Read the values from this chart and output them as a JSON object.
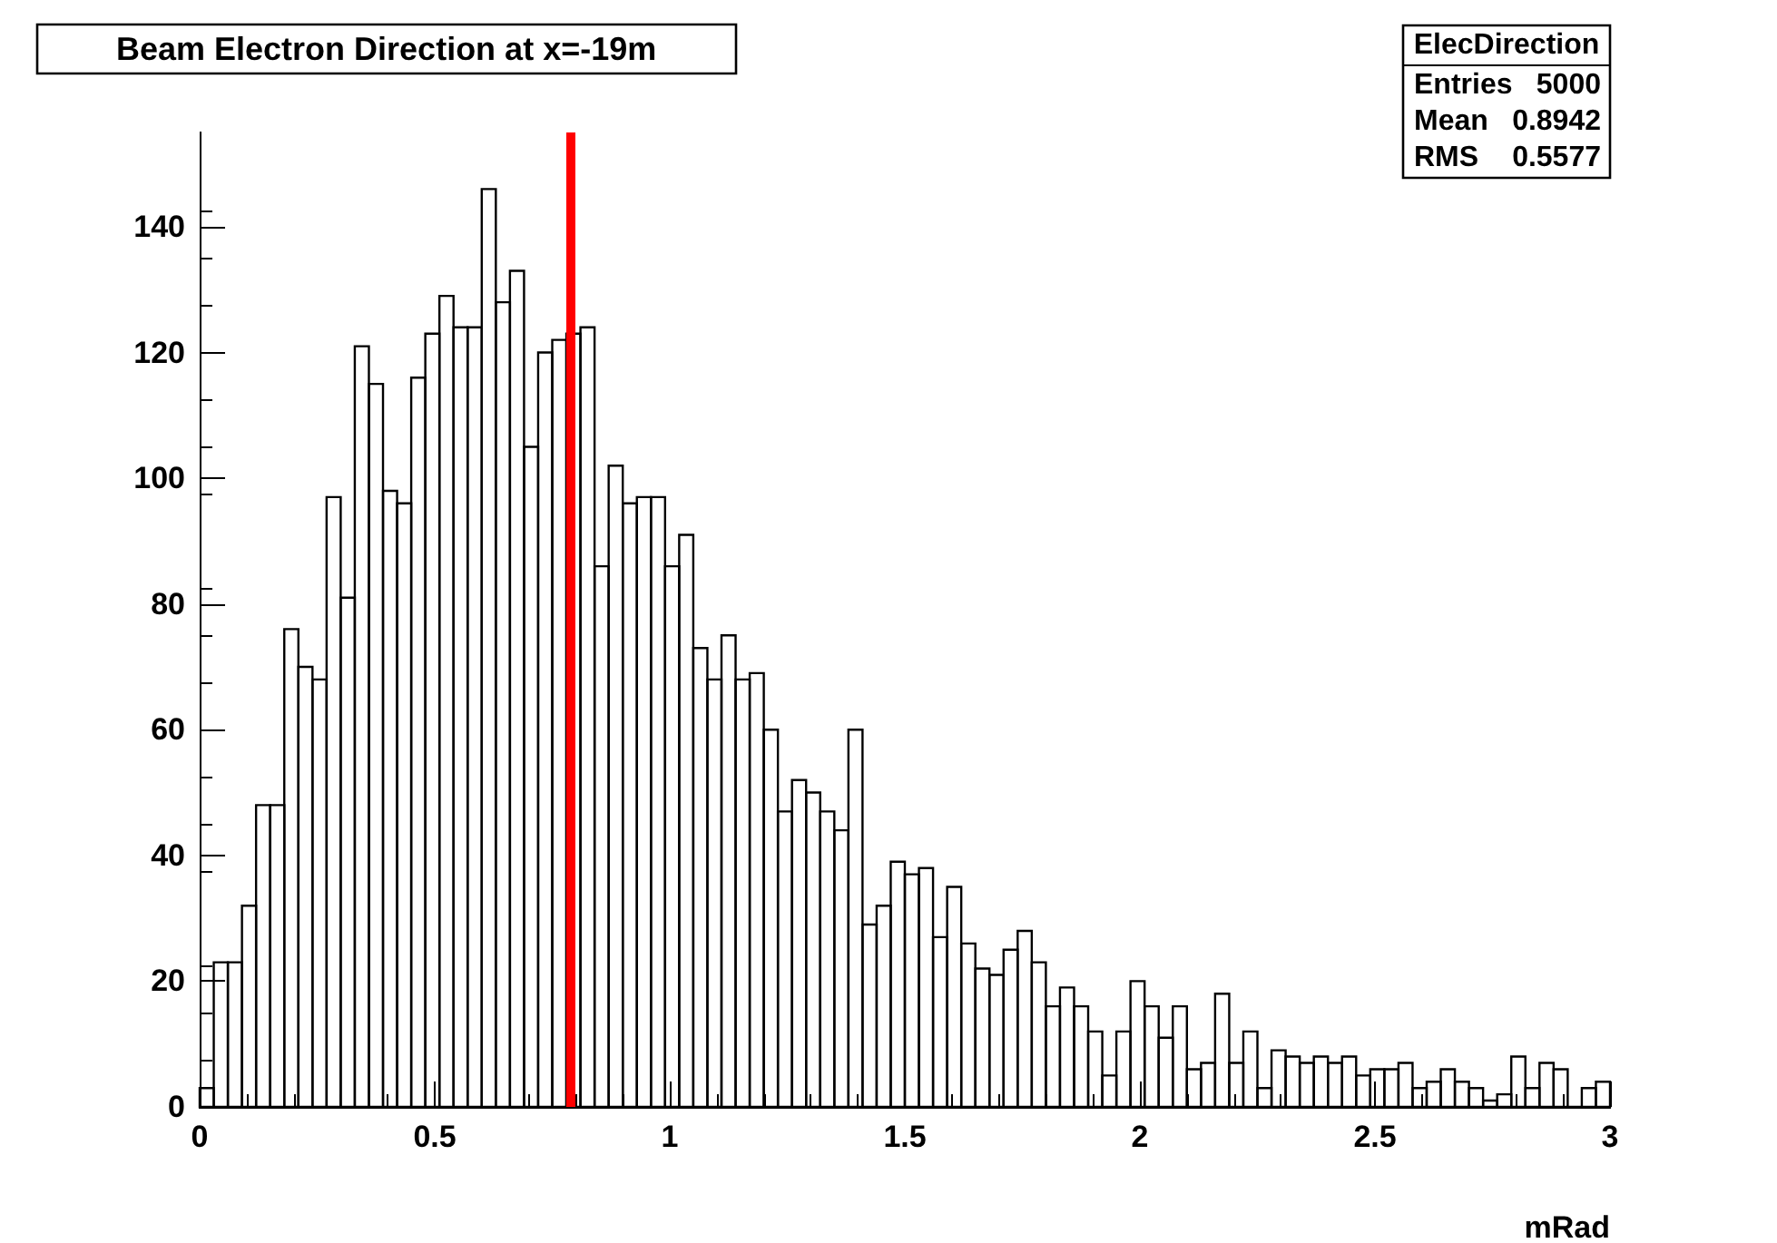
{
  "chart_data": {
    "type": "histogram",
    "title": "Beam Electron Direction at x=-19m",
    "xlabel": "mRad",
    "annotations": [
      "ElecDirection",
      "Entries",
      "5000",
      "Mean",
      "0.8942",
      "RMS",
      "0.5577"
    ],
    "bins": [
      0,
      0.03,
      0.06,
      0.09,
      0.12,
      0.15,
      0.18,
      0.21,
      0.24,
      0.27,
      0.3,
      0.33,
      0.36,
      0.39,
      0.42,
      0.45,
      0.48,
      0.51,
      0.54,
      0.57,
      0.6,
      0.63,
      0.66,
      0.69,
      0.72,
      0.75,
      0.78,
      0.81,
      0.84,
      0.87,
      0.9,
      0.93,
      0.96,
      0.99,
      1.02,
      1.05,
      1.08,
      1.11,
      1.14,
      1.17,
      1.2,
      1.23,
      1.26,
      1.29,
      1.32,
      1.35,
      1.38,
      1.41,
      1.44,
      1.47,
      1.5,
      1.53,
      1.56,
      1.59,
      1.62,
      1.65,
      1.68,
      1.71,
      1.74,
      1.77,
      1.8,
      1.83,
      1.86,
      1.89,
      1.92,
      1.95,
      1.98,
      2.01,
      2.04,
      2.07,
      2.1,
      2.13,
      2.16,
      2.19,
      2.22,
      2.25,
      2.28,
      2.31,
      2.34,
      2.37,
      2.4,
      2.43,
      2.46,
      2.49,
      2.52,
      2.55,
      2.58,
      2.61,
      2.64,
      2.67,
      2.7,
      2.73,
      2.76,
      2.79,
      2.82,
      2.85,
      2.88,
      2.91,
      2.94,
      2.97,
      3
    ],
    "values": [
      3,
      23,
      23,
      32,
      48,
      48,
      76,
      70,
      68,
      97,
      81,
      121,
      115,
      98,
      96,
      116,
      123,
      129,
      124,
      124,
      146,
      128,
      133,
      105,
      120,
      122,
      123,
      124,
      86,
      102,
      96,
      97,
      97,
      86,
      91,
      73,
      68,
      75,
      68,
      69,
      60,
      47,
      52,
      50,
      47,
      44,
      60,
      29,
      32,
      39,
      37,
      38,
      27,
      35,
      26,
      22,
      21,
      25,
      28,
      23,
      16,
      19,
      16,
      12,
      5,
      12,
      20,
      16,
      11,
      16,
      6,
      7,
      18,
      7,
      12,
      3,
      9,
      8,
      7,
      8,
      7,
      8,
      5,
      6,
      6,
      7,
      3,
      4,
      6,
      4,
      3,
      1,
      2,
      8,
      3,
      7,
      6,
      0,
      3,
      4
    ],
    "color": "#000000",
    "xlim": [
      0,
      3
    ],
    "xticks": [
      0,
      0.5,
      1,
      1.5,
      2,
      2.5,
      3
    ],
    "ylim": [
      0,
      155
    ],
    "yticks": [
      0,
      20,
      40,
      60,
      80,
      100,
      120,
      140
    ],
    "ref_lines": [
      {
        "axis": "x",
        "value": 0.79,
        "color": "#ff0000"
      }
    ],
    "grid": false
  }
}
